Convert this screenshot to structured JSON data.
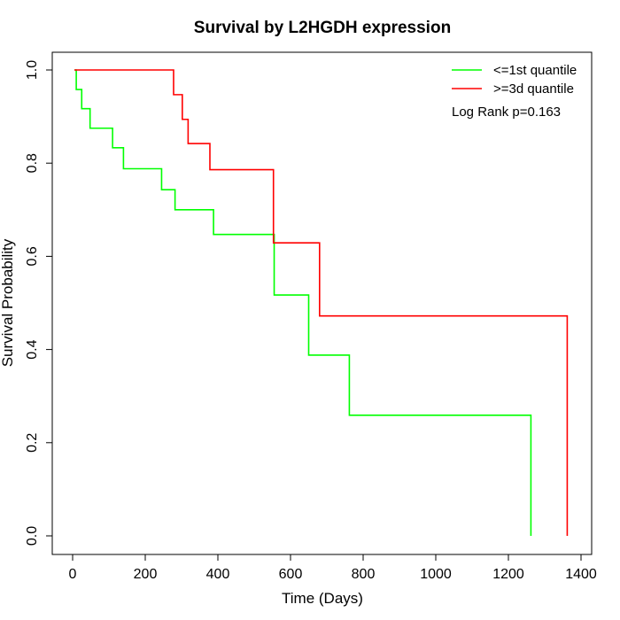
{
  "chart_data": {
    "type": "line",
    "title": "Survival by L2HGDH expression",
    "xlabel": "Time (Days)",
    "ylabel": "Survival Probability",
    "xlim": [
      0,
      1400
    ],
    "ylim": [
      0,
      1
    ],
    "xticks": [
      0,
      200,
      400,
      600,
      800,
      1000,
      1200,
      1400
    ],
    "yticks": [
      0.0,
      0.2,
      0.4,
      0.6,
      0.8,
      1.0
    ],
    "xtick_labels": [
      "0",
      "200",
      "400",
      "600",
      "800",
      "1000",
      "1200",
      "1400"
    ],
    "ytick_labels": [
      "0.0",
      "0.2",
      "0.4",
      "0.6",
      "0.8",
      "1.0"
    ],
    "grid": false,
    "legend_position": "top-right",
    "annotation": "Log Rank p=0.163",
    "series": [
      {
        "name": "<=1st quantile",
        "color": "#00ff00",
        "step": true,
        "x": [
          5,
          10,
          25,
          48,
          110,
          140,
          245,
          282,
          388,
          555,
          650,
          762,
          1262,
          1262
        ],
        "y": [
          1.0,
          0.958,
          0.917,
          0.875,
          0.833,
          0.788,
          0.743,
          0.7,
          0.647,
          0.517,
          0.388,
          0.259,
          0.259,
          0.0
        ]
      },
      {
        "name": ">=3d quantile",
        "color": "#ff0000",
        "step": true,
        "x": [
          5,
          278,
          302,
          318,
          378,
          553,
          680,
          1362,
          1362
        ],
        "y": [
          1.0,
          0.947,
          0.894,
          0.842,
          0.786,
          0.629,
          0.472,
          0.472,
          0.0
        ]
      }
    ]
  }
}
